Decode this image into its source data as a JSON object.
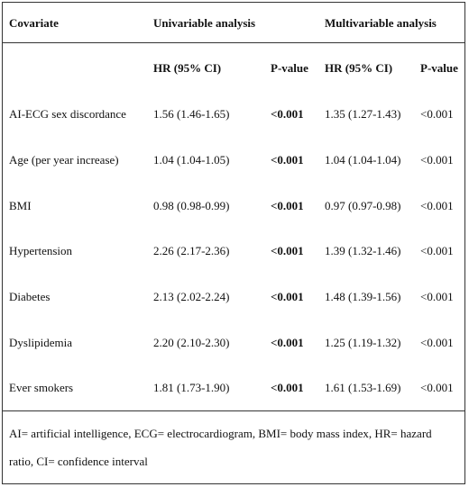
{
  "header": {
    "covariate": "Covariate",
    "univariable": "Univariable analysis",
    "multivariable": "Multivariable analysis"
  },
  "subheader": {
    "hr_uni": "HR (95% CI)",
    "p_uni": "P-value",
    "hr_multi": "HR (95% CI)",
    "p_multi": "P-value"
  },
  "rows": [
    {
      "covariate": "AI-ECG sex discordance",
      "hr_uni": "1.56 (1.46-1.65)",
      "p_uni": "<0.001",
      "hr_multi": "1.35 (1.27-1.43)",
      "p_multi": "<0.001"
    },
    {
      "covariate": "Age (per year increase)",
      "hr_uni": "1.04 (1.04-1.05)",
      "p_uni": "<0.001",
      "hr_multi": "1.04 (1.04-1.04)",
      "p_multi": "<0.001"
    },
    {
      "covariate": "BMI",
      "hr_uni": "0.98 (0.98-0.99)",
      "p_uni": "<0.001",
      "hr_multi": "0.97 (0.97-0.98)",
      "p_multi": "<0.001"
    },
    {
      "covariate": "Hypertension",
      "hr_uni": "2.26 (2.17-2.36)",
      "p_uni": "<0.001",
      "hr_multi": "1.39 (1.32-1.46)",
      "p_multi": "<0.001"
    },
    {
      "covariate": "Diabetes",
      "hr_uni": "2.13 (2.02-2.24)",
      "p_uni": "<0.001",
      "hr_multi": "1.48 (1.39-1.56)",
      "p_multi": "<0.001"
    },
    {
      "covariate": "Dyslipidemia",
      "hr_uni": "2.20 (2.10-2.30)",
      "p_uni": "<0.001",
      "hr_multi": "1.25 (1.19-1.32)",
      "p_multi": "<0.001"
    },
    {
      "covariate": "Ever smokers",
      "hr_uni": "1.81 (1.73-1.90)",
      "p_uni": "<0.001",
      "hr_multi": "1.61 (1.53-1.69)",
      "p_multi": "<0.001"
    }
  ],
  "footnote": "AI= artificial intelligence, ECG= electrocardiogram, BMI= body mass index, HR= hazard ratio, CI= confidence interval"
}
